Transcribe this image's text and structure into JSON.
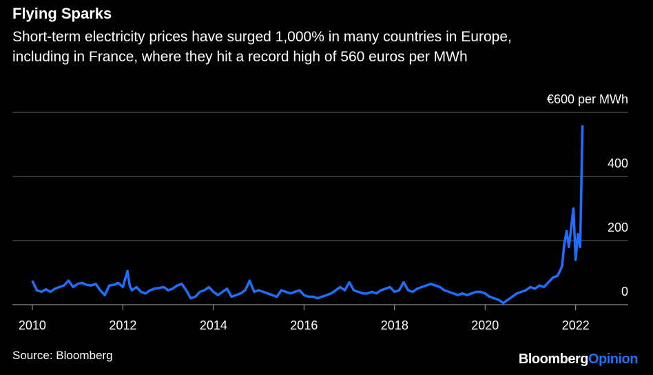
{
  "chart_data": {
    "type": "line",
    "title": "Flying Sparks",
    "subtitle": [
      "Short-term electricity prices have surged 1,000% in many countries in Europe,",
      "including in France, where they hit a record high of 560 euros per MWh"
    ],
    "source": "Source: Bloomberg",
    "logo": {
      "brand": "Bloomberg",
      "suffix": "Opinion"
    },
    "x": [
      2010.0,
      2010.1,
      2010.2,
      2010.3,
      2010.4,
      2010.5,
      2010.6,
      2010.7,
      2010.8,
      2010.9,
      2011.0,
      2011.1,
      2011.2,
      2011.3,
      2011.4,
      2011.5,
      2011.6,
      2011.7,
      2011.8,
      2011.9,
      2012.0,
      2012.1,
      2012.15,
      2012.2,
      2012.3,
      2012.4,
      2012.5,
      2012.6,
      2012.7,
      2012.8,
      2012.9,
      2013.0,
      2013.1,
      2013.2,
      2013.3,
      2013.4,
      2013.5,
      2013.6,
      2013.7,
      2013.8,
      2013.9,
      2014.0,
      2014.1,
      2014.2,
      2014.3,
      2014.4,
      2014.5,
      2014.6,
      2014.7,
      2014.8,
      2014.9,
      2015.0,
      2015.1,
      2015.2,
      2015.3,
      2015.4,
      2015.5,
      2015.6,
      2015.7,
      2015.8,
      2015.9,
      2016.0,
      2016.1,
      2016.2,
      2016.3,
      2016.4,
      2016.5,
      2016.6,
      2016.7,
      2016.8,
      2016.9,
      2017.0,
      2017.1,
      2017.2,
      2017.3,
      2017.4,
      2017.5,
      2017.6,
      2017.7,
      2017.8,
      2017.9,
      2018.0,
      2018.1,
      2018.2,
      2018.3,
      2018.4,
      2018.5,
      2018.6,
      2018.7,
      2018.8,
      2018.9,
      2019.0,
      2019.1,
      2019.2,
      2019.3,
      2019.4,
      2019.5,
      2019.6,
      2019.7,
      2019.8,
      2019.9,
      2020.0,
      2020.1,
      2020.2,
      2020.3,
      2020.4,
      2020.5,
      2020.6,
      2020.7,
      2020.8,
      2020.9,
      2021.0,
      2021.1,
      2021.2,
      2021.3,
      2021.4,
      2021.5,
      2021.6,
      2021.7,
      2021.75,
      2021.8,
      2021.85,
      2021.9,
      2021.95,
      2022.0,
      2022.05,
      2022.1,
      2022.15
    ],
    "series": [
      {
        "name": "France",
        "color": "#1f6fff",
        "values": [
          75,
          45,
          40,
          48,
          40,
          50,
          55,
          60,
          75,
          55,
          65,
          68,
          62,
          60,
          65,
          45,
          30,
          60,
          62,
          68,
          55,
          105,
          60,
          45,
          55,
          40,
          35,
          45,
          50,
          52,
          55,
          45,
          50,
          60,
          65,
          45,
          20,
          25,
          40,
          45,
          55,
          40,
          30,
          40,
          50,
          25,
          30,
          35,
          45,
          75,
          40,
          45,
          40,
          35,
          30,
          25,
          45,
          40,
          35,
          40,
          45,
          30,
          25,
          25,
          20,
          25,
          30,
          35,
          45,
          55,
          45,
          70,
          45,
          40,
          35,
          35,
          40,
          35,
          45,
          50,
          55,
          40,
          45,
          70,
          45,
          40,
          50,
          55,
          60,
          65,
          60,
          55,
          45,
          40,
          35,
          30,
          35,
          30,
          35,
          40,
          40,
          35,
          25,
          20,
          15,
          5,
          15,
          25,
          35,
          40,
          45,
          55,
          50,
          60,
          55,
          70,
          85,
          90,
          120,
          190,
          230,
          180,
          240,
          300,
          140,
          220,
          180,
          560
        ]
      }
    ],
    "xlim": [
      2009.56,
      2023.16
    ],
    "xticks": [
      2010,
      2012,
      2014,
      2016,
      2018,
      2020,
      2022
    ],
    "ylim": [
      0,
      600
    ],
    "yticks": [
      0,
      200,
      400,
      {
        "value": 600,
        "label": "€600 per MWh"
      }
    ],
    "grid": true
  }
}
